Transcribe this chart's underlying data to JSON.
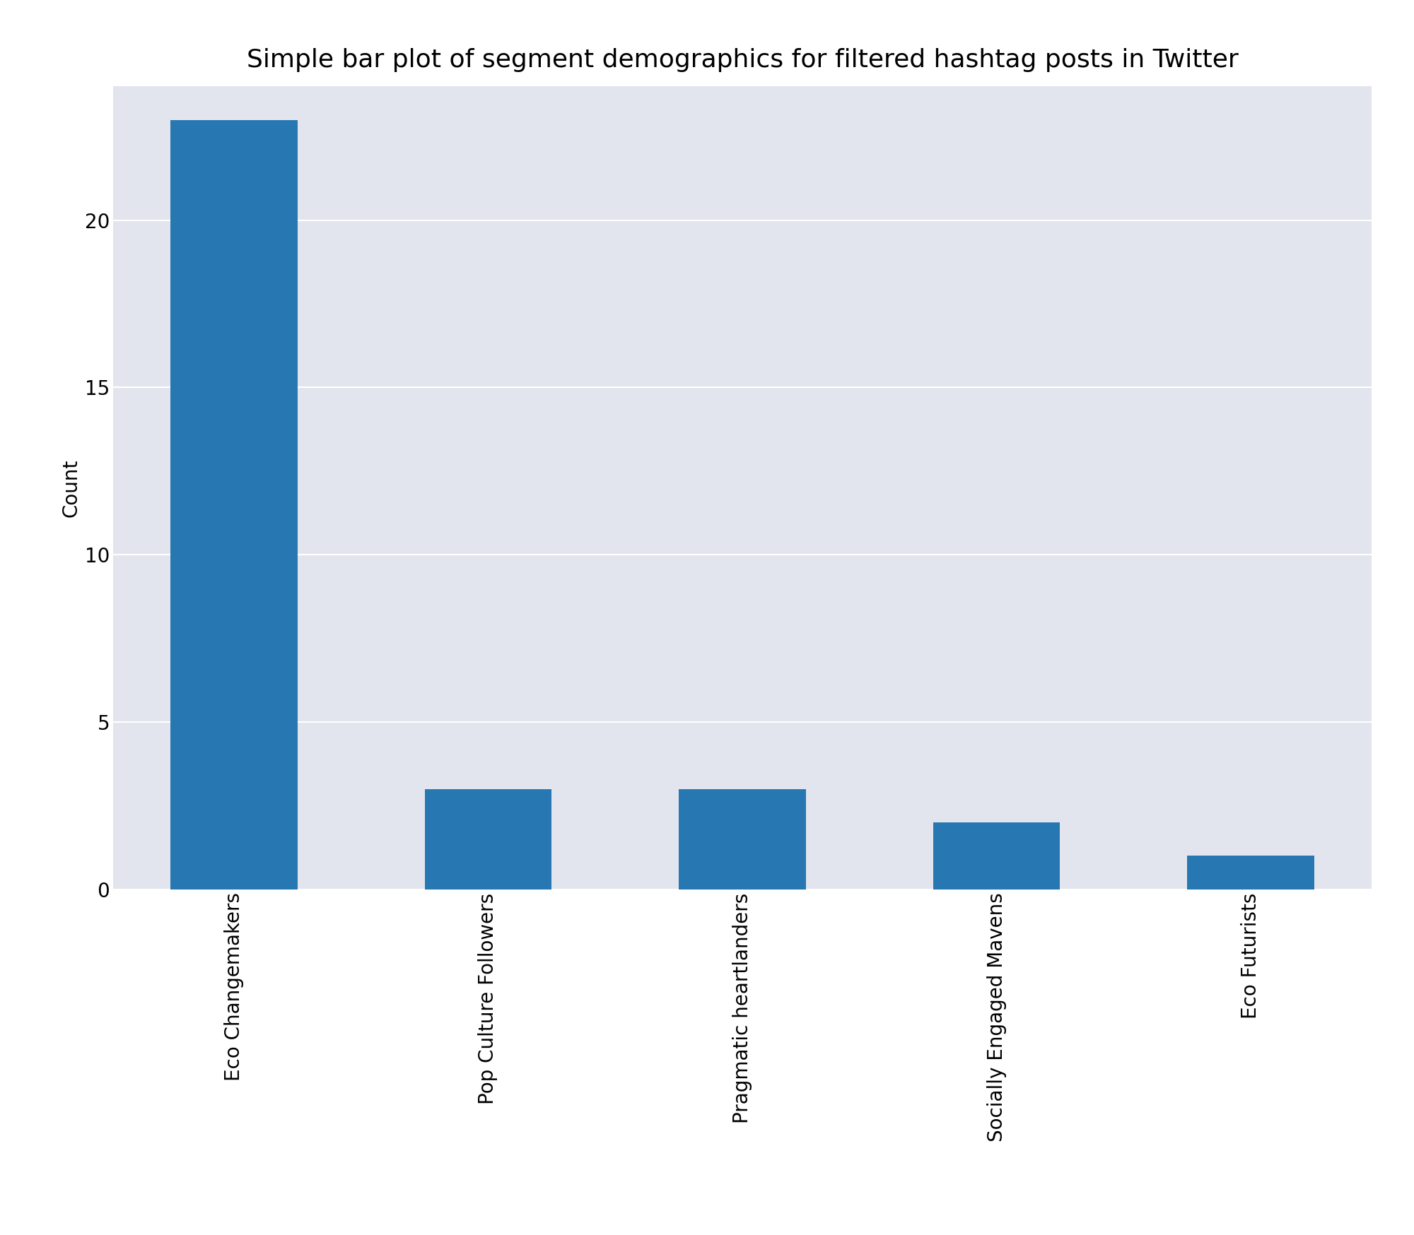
{
  "title": "Simple bar plot of segment demographics for filtered hashtag posts in Twitter",
  "categories": [
    "Eco Changemakers",
    "Pop Culture Followers",
    "Pragmatic heartlanders",
    "Socially Engaged Mavens",
    "Eco Futurists"
  ],
  "values": [
    23,
    3,
    3,
    2,
    1
  ],
  "bar_color": "#2778b2",
  "ylabel": "Count",
  "xlabel": "",
  "ylim": [
    0,
    24
  ],
  "yticks": [
    0,
    5,
    10,
    15,
    20
  ],
  "plot_background_color": "#e2e5ed",
  "figure_background_color": "#ffffff",
  "grid_color": "#ffffff",
  "title_fontsize": 26,
  "label_fontsize": 20,
  "tick_fontsize": 20
}
